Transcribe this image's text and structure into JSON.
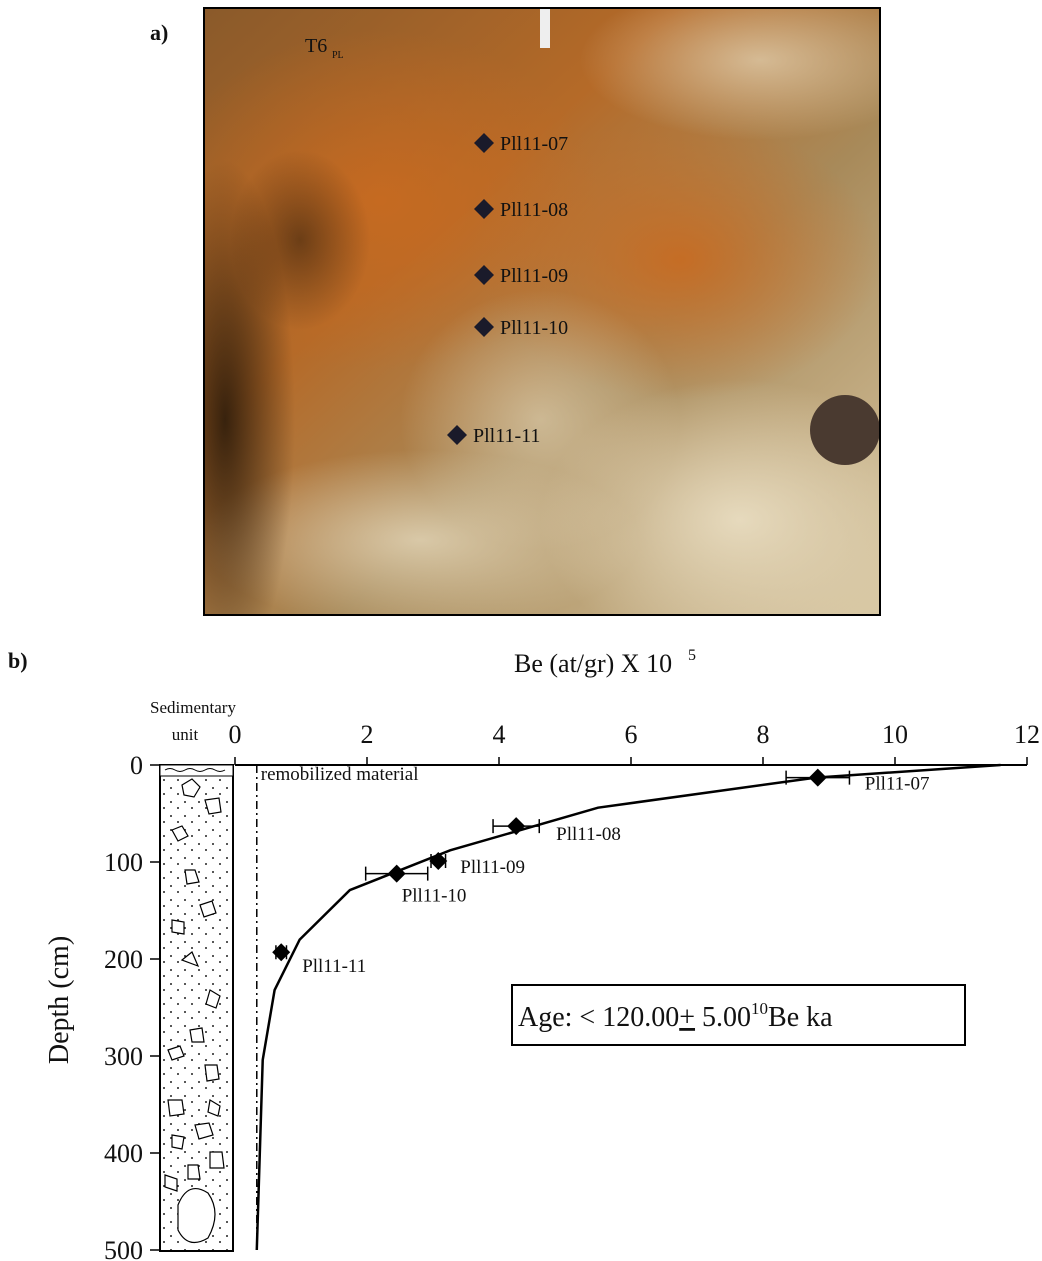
{
  "photo": {
    "panel_label": "a)",
    "site": "T6",
    "site_sub": "PL",
    "samples": [
      "Pll11-07",
      "Pll11-08",
      "Pll11-09",
      "Pll11-10",
      "Pll11-11"
    ]
  },
  "chart_data": {
    "type": "scatter",
    "panel_label": "b)",
    "x_label": "Be (at/gr) X 10",
    "x_label_sup": "5",
    "y_label": "Depth (cm)",
    "column_label": [
      "Sedimentary",
      "unit"
    ],
    "annotation": "remobilized material",
    "age_label": [
      "Age: < 120.00",
      "+",
      " 5.00",
      "10",
      "Be ka"
    ],
    "xlim": [
      0,
      12
    ],
    "xticks": [
      0,
      2,
      4,
      6,
      8,
      10,
      12
    ],
    "ylim": [
      0,
      500
    ],
    "yticks": [
      0,
      100,
      200,
      300,
      400,
      500
    ],
    "reference_x": 0.33,
    "series": [
      {
        "labels": [
          "Pll11-07",
          "Pll11-08",
          "Pll11-09",
          "Pll11-10",
          "Pll11-11"
        ],
        "color": "#000000",
        "x": [
          8.83,
          4.26,
          3.08,
          2.45,
          0.7
        ],
        "x_errors": [
          0.48,
          0.35,
          0.11,
          0.47,
          0.08
        ],
        "values": [
          13,
          63,
          99,
          112,
          193
        ]
      },
      {
        "type": "line",
        "color": "#000000",
        "x": [
          11.6,
          8.8,
          5.5,
          3.26,
          1.74,
          0.98,
          0.6,
          0.42,
          0.33
        ],
        "values": [
          0,
          13,
          44,
          88,
          129,
          180,
          232,
          304,
          500
        ]
      }
    ]
  }
}
